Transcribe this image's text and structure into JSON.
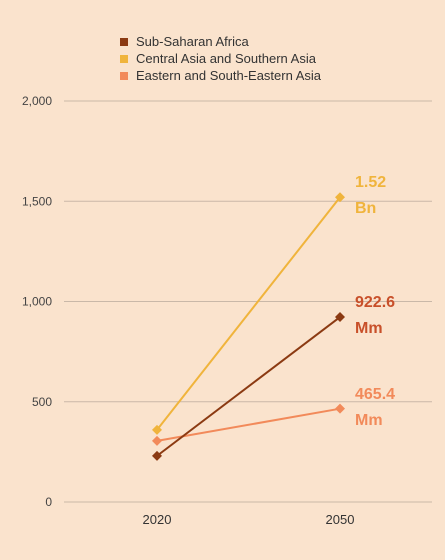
{
  "chart_data": {
    "type": "line",
    "title": "",
    "xlabel": "",
    "ylabel": "",
    "categories": [
      "2020",
      "2050"
    ],
    "ylim": [
      0,
      2000
    ],
    "yticks": [
      0,
      500,
      1000,
      1500,
      2000
    ],
    "ytick_labels": [
      "0",
      "500",
      "1,000",
      "1,500",
      "2,000"
    ],
    "grid": "horizontal",
    "legend_position": "top",
    "series": [
      {
        "name": "Sub-Saharan Africa",
        "values": [
          230,
          922.6
        ],
        "color": "#8b3a12",
        "end_label": [
          "922.6",
          "Mm"
        ]
      },
      {
        "name": "Central Asia and Southern Asia",
        "values": [
          360,
          1520
        ],
        "color": "#f0b43c",
        "end_label": [
          "1.52",
          "Bn"
        ]
      },
      {
        "name": "Eastern and South-Eastern Asia",
        "values": [
          305,
          465.4
        ],
        "color": "#f28a5a",
        "end_label": [
          "465.4",
          "Mm"
        ]
      }
    ],
    "end_label_colors": [
      "#c8502a",
      "#f0b43c",
      "#f28a5a"
    ],
    "marker": "diamond"
  }
}
